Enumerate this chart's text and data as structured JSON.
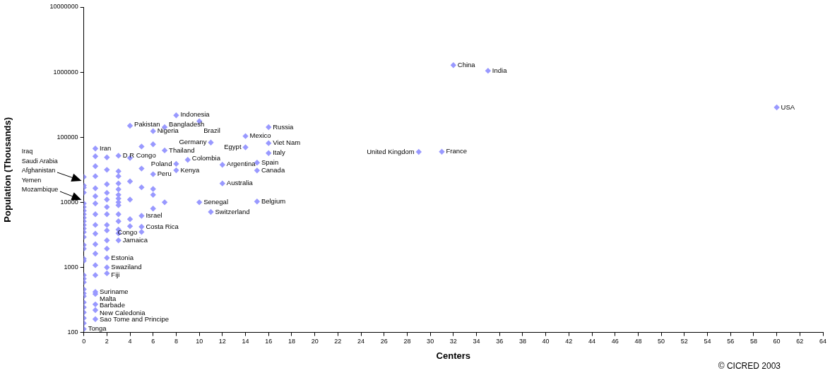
{
  "chart_data": {
    "type": "scatter",
    "xlabel": "Centers",
    "ylabel": "Population (Thousands)",
    "x": [
      0,
      0,
      0,
      0,
      0,
      0,
      0,
      0,
      0,
      0,
      0,
      0,
      0,
      0,
      0,
      0,
      0,
      0,
      0,
      0,
      0,
      0,
      0,
      0,
      0,
      0,
      0,
      0,
      0,
      0,
      1,
      1,
      1,
      1,
      1,
      1,
      1,
      1,
      1,
      1,
      1,
      1,
      1,
      1,
      1,
      1,
      1,
      1,
      1,
      2,
      2,
      2,
      2,
      2,
      2,
      2,
      2,
      2,
      2,
      2,
      2,
      2,
      2,
      3,
      3,
      3,
      3,
      3,
      3,
      3,
      3,
      3,
      3,
      3,
      3,
      3,
      3,
      4,
      4,
      4,
      4,
      4,
      4,
      5,
      5,
      5,
      5,
      5,
      5,
      6,
      6,
      6,
      6,
      6,
      6,
      7,
      7,
      7,
      8,
      8,
      8,
      9,
      10,
      10,
      11,
      11,
      12,
      12,
      14,
      14,
      15,
      15,
      15,
      16,
      16,
      16,
      29,
      31,
      32,
      35,
      60
    ],
    "values": [
      24500,
      18100,
      16800,
      14100,
      9600,
      8450,
      7440,
      6560,
      5780,
      5100,
      4490,
      3950,
      3480,
      2920,
      2210,
      1940,
      1360,
      1260,
      760,
      670,
      590,
      460,
      400,
      360,
      290,
      243,
      203,
      166,
      139,
      113,
      67000,
      51000,
      35900,
      25200,
      16400,
      12400,
      9600,
      6560,
      4490,
      3300,
      2270,
      1630,
      1080,
      760,
      420,
      390,
      270,
      220,
      160,
      49000,
      31600,
      19000,
      14000,
      11000,
      8450,
      6560,
      4490,
      3700,
      2600,
      1940,
      1400,
      1000,
      810,
      52000,
      30000,
      25200,
      19500,
      15800,
      13000,
      11400,
      10000,
      9000,
      6560,
      5100,
      3800,
      3340,
      2600,
      150000,
      48000,
      21000,
      11000,
      5500,
      4300,
      72000,
      33000,
      17000,
      6200,
      4200,
      3500,
      124000,
      78000,
      27000,
      16000,
      13000,
      8000,
      143000,
      62700,
      10000,
      217000,
      39000,
      31000,
      45000,
      176000,
      10000,
      83000,
      7100,
      37700,
      19500,
      104000,
      70000,
      40700,
      30800,
      10300,
      143000,
      81000,
      57000,
      59600,
      60000,
      1280000,
      1050000,
      287000
    ],
    "color": "#9999ff",
    "marker": "diamond",
    "log": "y",
    "grid": false,
    "legend": false,
    "xlim": [
      0,
      64
    ],
    "xticks": [
      0,
      2,
      4,
      6,
      8,
      10,
      12,
      14,
      16,
      18,
      20,
      22,
      24,
      26,
      28,
      30,
      32,
      34,
      36,
      38,
      40,
      42,
      44,
      46,
      48,
      50,
      52,
      54,
      56,
      58,
      60,
      62,
      64
    ],
    "ylim": [
      100,
      10000000
    ],
    "yticks": [
      100,
      1000,
      10000,
      100000,
      1000000,
      10000000
    ],
    "annotations": [
      "Iraq",
      "Saudi Arabia",
      "Afghanistan",
      "Yemen",
      "Mozambique",
      {
        "text": "Tonga",
        "x": 0,
        "y": 113
      },
      {
        "text": "Iran",
        "x": 1,
        "y": 67000
      },
      {
        "text": "Suriname",
        "x": 1,
        "y": 420
      },
      {
        "text": "Malta",
        "x": 1,
        "y": 390
      },
      {
        "text": "Barbade",
        "x": 1,
        "y": 270
      },
      {
        "text": "New Caledonia",
        "x": 1,
        "y": 220
      },
      {
        "text": "Sao Tome and Principe",
        "x": 1,
        "y": 160
      },
      {
        "text": "Estonia",
        "x": 2,
        "y": 1400
      },
      {
        "text": "Swaziland",
        "x": 2,
        "y": 1000
      },
      {
        "text": "Fiji",
        "x": 2,
        "y": 810
      },
      {
        "text": "D R Congo",
        "x": 3,
        "y": 52000
      },
      {
        "text": "Jamaica",
        "x": 3,
        "y": 2600
      },
      {
        "text": "Pakistan",
        "x": 4,
        "y": 150000
      },
      {
        "text": "Israel",
        "x": 5,
        "y": 6200
      },
      {
        "text": "Costa Rica",
        "x": 5,
        "y": 4200
      },
      {
        "text": "Congo",
        "x": 5,
        "y": 3500
      },
      {
        "text": "Nigeria",
        "x": 6,
        "y": 124000
      },
      {
        "text": "Peru",
        "x": 6,
        "y": 27000
      },
      {
        "text": "Bangladesh",
        "x": 7,
        "y": 143000
      },
      {
        "text": "Thailand",
        "x": 7,
        "y": 62700
      },
      {
        "text": "Indonesia",
        "x": 8,
        "y": 217000
      },
      {
        "text": "Poland",
        "x": 8,
        "y": 39000
      },
      {
        "text": "Kenya",
        "x": 8,
        "y": 31000
      },
      {
        "text": "Colombia",
        "x": 9,
        "y": 45000
      },
      {
        "text": "Brazil",
        "x": 10,
        "y": 176000
      },
      {
        "text": "Senegal",
        "x": 10,
        "y": 10000
      },
      {
        "text": "Germany",
        "x": 11,
        "y": 83000
      },
      {
        "text": "Switzerland",
        "x": 11,
        "y": 7100
      },
      {
        "text": "Argentina",
        "x": 12,
        "y": 37700
      },
      {
        "text": "Australia",
        "x": 12,
        "y": 19500
      },
      {
        "text": "Mexico",
        "x": 14,
        "y": 104000
      },
      {
        "text": "Egypt",
        "x": 14,
        "y": 70000
      },
      {
        "text": "Spain",
        "x": 15,
        "y": 40700
      },
      {
        "text": "Canada",
        "x": 15,
        "y": 30800
      },
      {
        "text": "Belgium",
        "x": 15,
        "y": 10300
      },
      {
        "text": "Russia",
        "x": 16,
        "y": 143000
      },
      {
        "text": "Viet Nam",
        "x": 16,
        "y": 81000
      },
      {
        "text": "Italy",
        "x": 16,
        "y": 57000
      },
      {
        "text": "United Kingdom",
        "x": 29,
        "y": 59600
      },
      {
        "text": "France",
        "x": 31,
        "y": 60000
      },
      {
        "text": "China",
        "x": 32,
        "y": 1280000
      },
      {
        "text": "India",
        "x": 35,
        "y": 1050000
      },
      {
        "text": "USA",
        "x": 60,
        "y": 287000
      },
      "© CICRED 2003"
    ]
  }
}
